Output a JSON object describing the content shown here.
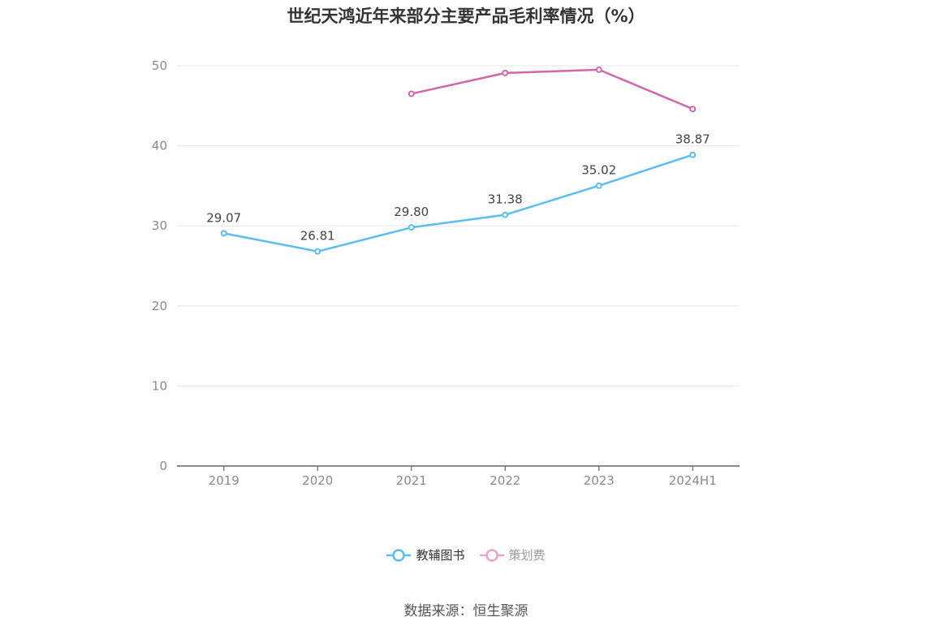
{
  "title": "世纪天鸿近年来部分主要产品毛利率情况（%）",
  "source": "数据来源：恒生聚源",
  "colors": {
    "series1": "#5bbdf0",
    "series2": "#d366aa",
    "series2_legend": "#e9a3cc",
    "grid": "#e3e6ee",
    "axis": "#666666"
  },
  "chart_data": {
    "type": "line",
    "title": "世纪天鸿近年来部分主要产品毛利率情况（%）",
    "xlabel": "",
    "ylabel": "",
    "categories": [
      "2019",
      "2020",
      "2021",
      "2022",
      "2023",
      "2024H1"
    ],
    "ylim": [
      0,
      50
    ],
    "yticks": [
      0,
      10,
      20,
      30,
      40,
      50
    ],
    "grid": true,
    "legend_position": "bottom",
    "series": [
      {
        "name": "教辅图书",
        "values": [
          29.07,
          26.81,
          29.8,
          31.38,
          35.02,
          38.87
        ],
        "labels": [
          "29.07",
          "26.81",
          "29.80",
          "31.38",
          "35.02",
          "38.87"
        ],
        "show_labels": true
      },
      {
        "name": "策划费",
        "values": [
          null,
          null,
          46.5,
          49.1,
          49.5,
          44.6
        ],
        "show_labels": false
      }
    ]
  }
}
